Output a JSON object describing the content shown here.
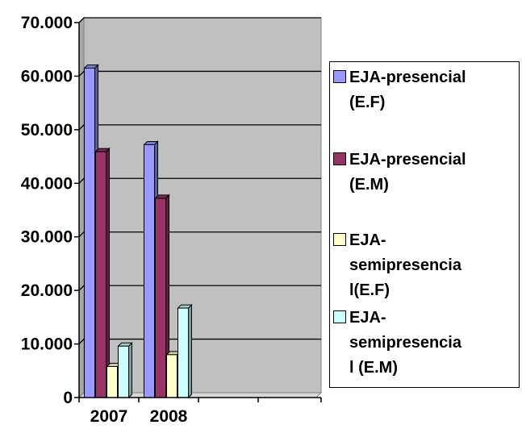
{
  "chart_data": {
    "type": "bar",
    "categories": [
      "2007",
      "2008"
    ],
    "series": [
      {
        "name": "EJA-presencial (E.F)",
        "values": [
          61500,
          47200
        ],
        "color": "#9999ff"
      },
      {
        "name": "EJA-presencial (E.M)",
        "values": [
          45900,
          37200
        ],
        "color": "#993366"
      },
      {
        "name": "EJA-semipresencial(E.F)",
        "values": [
          5800,
          8000
        ],
        "color": "#ffffcc"
      },
      {
        "name": "EJA-semipresencial (E.M)",
        "values": [
          9600,
          16700
        ],
        "color": "#ccffff"
      }
    ],
    "ylim": [
      0,
      70000
    ],
    "yticks": [
      0,
      10000,
      20000,
      30000,
      40000,
      50000,
      60000,
      70000
    ],
    "ytick_labels": [
      "0",
      "10.000",
      "20.000",
      "30.000",
      "40.000",
      "50.000",
      "60.000",
      "70.000"
    ],
    "grid": true,
    "plot_background": "#c0c0c0",
    "legend_placement": "right",
    "legend_labels": [
      "EJA-presencial\n(E.F)",
      "EJA-presencial\n(E.M)",
      "EJA-\nsemipresencia\nl(E.F)",
      "EJA-\nsemipresencia\nl (E.M)"
    ]
  }
}
